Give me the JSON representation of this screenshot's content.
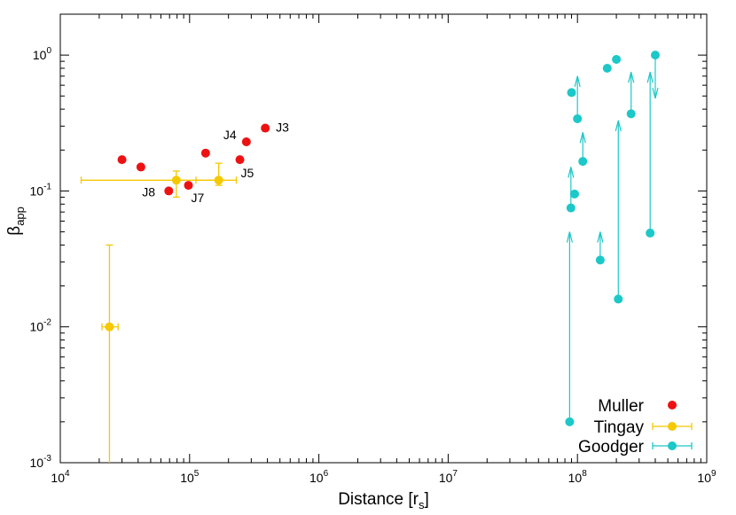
{
  "chart_data": {
    "type": "scatter",
    "xlabel": "Distance [r",
    "xlabel_sub": "s",
    "xlabel_close": "]",
    "ylabel": "β",
    "ylabel_sub": "app",
    "xscale": "log",
    "yscale": "log",
    "xlim": [
      10000,
      1000000000
    ],
    "ylim": [
      0.001,
      2
    ],
    "grid": false,
    "legend_position": "bottom-right",
    "x_ticks": [
      {
        "value": 10000,
        "base": "10",
        "exp": "4"
      },
      {
        "value": 100000,
        "base": "10",
        "exp": "5"
      },
      {
        "value": 1000000,
        "base": "10",
        "exp": "6"
      },
      {
        "value": 10000000,
        "base": "10",
        "exp": "7"
      },
      {
        "value": 100000000,
        "base": "10",
        "exp": "8"
      },
      {
        "value": 1000000000,
        "base": "10",
        "exp": "9"
      }
    ],
    "y_ticks": [
      {
        "value": 0.001,
        "base": "10",
        "exp": "-3"
      },
      {
        "value": 0.01,
        "base": "10",
        "exp": "-2"
      },
      {
        "value": 0.1,
        "base": "10",
        "exp": "-1"
      },
      {
        "value": 1,
        "base": "10",
        "exp": "0"
      }
    ],
    "series": [
      {
        "name": "Muller",
        "color": "#ee1111",
        "points": [
          {
            "x": 30000,
            "y": 0.17
          },
          {
            "x": 42000,
            "y": 0.15
          },
          {
            "x": 69000,
            "y": 0.1,
            "label": "J8"
          },
          {
            "x": 98000,
            "y": 0.11,
            "label": "J7"
          },
          {
            "x": 133000,
            "y": 0.19
          },
          {
            "x": 245000,
            "y": 0.17,
            "label": "J5"
          },
          {
            "x": 275000,
            "y": 0.23,
            "label": "J4"
          },
          {
            "x": 385000,
            "y": 0.29,
            "label": "J3"
          }
        ]
      },
      {
        "name": "Tingay",
        "color": "#f5c800",
        "points": [
          {
            "x": 24000,
            "y": 0.01,
            "xlow": 21000,
            "xhigh": 28000,
            "ylow": 0.001,
            "yhigh": 0.04
          },
          {
            "x": 79000,
            "y": 0.12,
            "xlow": 14500,
            "xhigh": 164000,
            "ylow": 0.09,
            "yhigh": 0.14
          },
          {
            "x": 168000,
            "y": 0.12,
            "xlow": 112000,
            "xhigh": 230000,
            "ylow": 0.11,
            "yhigh": 0.16
          }
        ]
      },
      {
        "name": "Goodger",
        "color": "#1cc8c8",
        "points": [
          {
            "x": 87000000,
            "y": 0.002,
            "arrow_to": 0.05
          },
          {
            "x": 89000000,
            "y": 0.075,
            "arrow_to": 0.15
          },
          {
            "x": 90000000,
            "y": 0.53
          },
          {
            "x": 95000000,
            "y": 0.095
          },
          {
            "x": 100000000,
            "y": 0.34,
            "arrow_to": 0.7
          },
          {
            "x": 110000000,
            "y": 0.165,
            "arrow_to": 0.27
          },
          {
            "x": 150000000,
            "y": 0.031,
            "arrow_to": 0.05
          },
          {
            "x": 170000000,
            "y": 0.8
          },
          {
            "x": 200000000,
            "y": 0.93
          },
          {
            "x": 207000000,
            "y": 0.016,
            "arrow_to": 0.33
          },
          {
            "x": 260000000,
            "y": 0.37,
            "arrow_to": 0.75
          },
          {
            "x": 365000000,
            "y": 0.049,
            "arrow_to": 0.75
          },
          {
            "x": 400000000,
            "y": 1.0,
            "arrow_to": 0.48
          }
        ]
      }
    ]
  }
}
